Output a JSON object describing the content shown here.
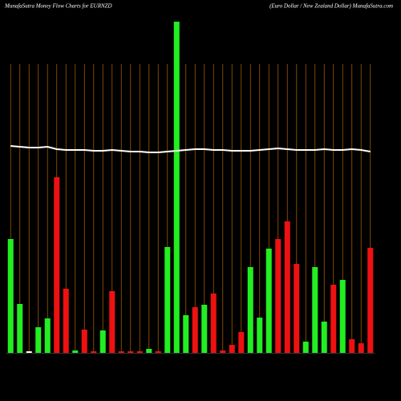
{
  "chart_data": {
    "type": "bar",
    "title": "MunafaSutra  Money Flow  Charts for EURNZD",
    "subtitle": "(Euro  Dollar / New  Zealand Dollar) MunafaSutra.com",
    "categories": [
      null,
      null,
      null,
      null,
      null,
      null,
      null,
      null,
      null,
      null,
      null,
      null,
      null,
      null,
      null,
      null,
      null,
      null,
      null,
      null,
      null,
      null,
      null,
      null,
      null,
      null,
      null,
      null,
      null,
      null,
      null,
      null,
      null,
      null,
      null,
      null,
      null,
      null,
      null,
      null
    ],
    "series": [
      {
        "type": "bar",
        "values": [
          142,
          61,
          2,
          32,
          43,
          219,
          80,
          3,
          29,
          2,
          28,
          77,
          2,
          2,
          2,
          5,
          2,
          132,
          413,
          47,
          57,
          60,
          74,
          3,
          10,
          26,
          107,
          44,
          130,
          142,
          164,
          111,
          14,
          107,
          39,
          85,
          91,
          17,
          12,
          131
        ],
        "colors": [
          "#22ee22",
          "#22ee22",
          "#ffffff",
          "#22ee22",
          "#22ee22",
          "#ee1111",
          "#ee1111",
          "#22ee22",
          "#ee1111",
          "#ee1111",
          "#22ee22",
          "#ee1111",
          "#ee1111",
          "#ee1111",
          "#ee1111",
          "#22ee22",
          "#ee1111",
          "#22ee22",
          "#22ee22",
          "#22ee22",
          "#ee1111",
          "#22ee22",
          "#ee1111",
          "#ee1111",
          "#ee1111",
          "#ee1111",
          "#22ee22",
          "#22ee22",
          "#22ee22",
          "#ee1111",
          "#ee1111",
          "#ee1111",
          "#22ee22",
          "#22ee22",
          "#22ee22",
          "#ee1111",
          "#22ee22",
          "#ee1111",
          "#ee1111",
          "#ee1111"
        ]
      },
      {
        "type": "line",
        "color": "#ffffff",
        "values": [
          258,
          257,
          256,
          256,
          257,
          254,
          253,
          253,
          253,
          252,
          252,
          253,
          252,
          251,
          251,
          250,
          250,
          251,
          252,
          253,
          254,
          254,
          253,
          253,
          252,
          252,
          252,
          253,
          254,
          255,
          254,
          253,
          253,
          253,
          254,
          253,
          253,
          254,
          253,
          251
        ]
      }
    ],
    "ylim": [
      0,
      413
    ],
    "grid_color": "#a15a00"
  }
}
